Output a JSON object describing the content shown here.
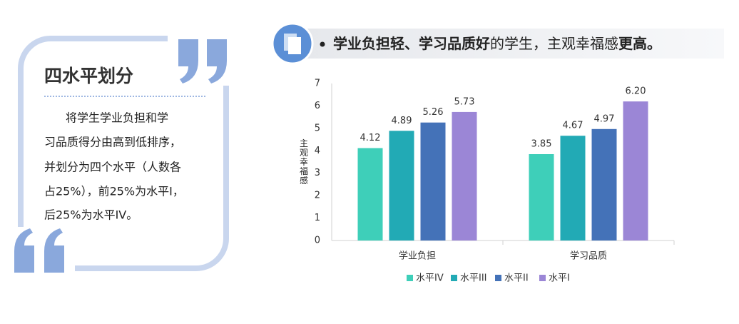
{
  "panel": {
    "title": "四水平划分",
    "lines": [
      "将学生学业负担和学",
      "习品质得分由高到低排序，",
      "并划分为四个水平（人数各",
      "占25%），前25%为水平I，",
      "后25%为水平IV。"
    ]
  },
  "header": {
    "parts": [
      "学业负担轻、学习品质好",
      "的学生，主观幸福感",
      "更高。"
    ]
  },
  "chart_data": {
    "type": "bar",
    "y_label": "主观幸福感",
    "categories": [
      "学业负担",
      "学习品质"
    ],
    "series": [
      {
        "name": "水平IV",
        "color": "#3ecfb9",
        "values": [
          4.12,
          3.85
        ]
      },
      {
        "name": "水平III",
        "color": "#22aab5",
        "values": [
          4.89,
          4.67
        ]
      },
      {
        "name": "水平II",
        "color": "#4472b8",
        "values": [
          5.26,
          4.97
        ]
      },
      {
        "name": "水平I",
        "color": "#9b86d6",
        "values": [
          5.73,
          6.2
        ],
        "value_labels": [
          "5.73",
          "6.20"
        ]
      }
    ],
    "ylim": [
      0,
      7
    ],
    "yticks": [
      0,
      1,
      2,
      3,
      4,
      5,
      6,
      7
    ],
    "grid": false
  }
}
